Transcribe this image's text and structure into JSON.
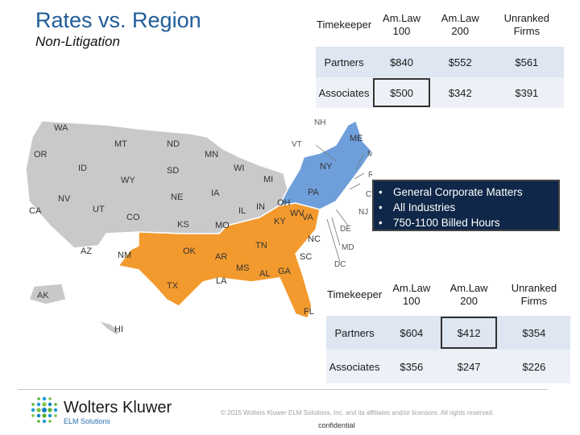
{
  "title": "Rates vs. Region",
  "subtitle": "Non-Litigation",
  "top_table": {
    "headers": [
      "Timekeeper",
      "Am.Law 100",
      "Am.Law 200",
      "Unranked Firms"
    ],
    "rows": [
      [
        "Partners",
        "$840",
        "$552",
        "$561"
      ],
      [
        "Associates",
        "$500",
        "$342",
        "$391"
      ]
    ]
  },
  "bottom_table": {
    "headers": [
      "Timekeeper",
      "Am.Law 100",
      "Am.Law 200",
      "Unranked Firms"
    ],
    "rows": [
      [
        "Partners",
        "$604",
        "$412",
        "$354"
      ],
      [
        "Associates",
        "$356",
        "$247",
        "$226"
      ]
    ]
  },
  "bullets": [
    "General Corporate Matters",
    "All Industries",
    "750-1100 Billed Hours"
  ],
  "map": {
    "colors": {
      "northeast": "#6f9fdb",
      "south": "#f39a2e",
      "other": "#c9c9c9"
    },
    "labels": {
      "WA": "WA",
      "OR": "OR",
      "ID": "ID",
      "MT": "MT",
      "ND": "ND",
      "MN": "MN",
      "WI": "WI",
      "MI": "MI",
      "SD": "SD",
      "WY": "WY",
      "NE": "NE",
      "IA": "IA",
      "IL": "IL",
      "IN": "IN",
      "OH": "OH",
      "NV": "NV",
      "UT": "UT",
      "CO": "CO",
      "KS": "KS",
      "MO": "MO",
      "KY": "KY",
      "WV": "WV",
      "VA": "VA",
      "CA": "CA",
      "AZ": "AZ",
      "NM": "NM",
      "OK": "OK",
      "AR": "AR",
      "TN": "TN",
      "NC": "NC",
      "SC": "SC",
      "MS": "MS",
      "AL": "AL",
      "GA": "GA",
      "LA": "LA",
      "TX": "TX",
      "FL": "FL",
      "AK": "AK",
      "HI": "HI",
      "ME": "ME",
      "NY": "NY",
      "PA": "PA",
      "NH": "NH",
      "VT": "VT",
      "MA": "MA",
      "RI": "RI",
      "CT": "CT",
      "NJ": "NJ",
      "DE": "DE",
      "MD": "MD",
      "DC": "DC"
    }
  },
  "footer": {
    "brand": "Wolters Kluwer",
    "brand_sub": "ELM Solutions",
    "copyright": "© 2015 Wolters Kluwer ELM Solutions, Inc. and its affiliates and/or licensors. All rights reserved.",
    "confidential": "confidential"
  }
}
